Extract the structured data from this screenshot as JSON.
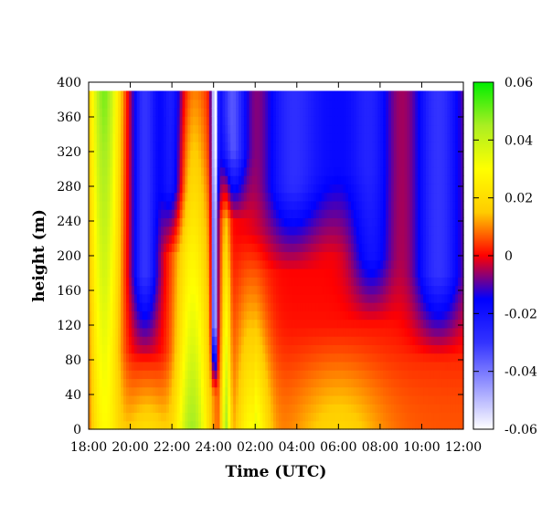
{
  "chart_data": {
    "type": "heatmap",
    "title": "",
    "xlabel": "Time (UTC)",
    "ylabel": "height (m)",
    "x_ticks": [
      "18:00",
      "20:00",
      "22:00",
      "24:00",
      "02:00",
      "04:00",
      "06:00",
      "08:00",
      "10:00",
      "12:00"
    ],
    "x_range_hours": [
      18,
      36
    ],
    "y_ticks": [
      0,
      40,
      80,
      120,
      160,
      200,
      240,
      280,
      320,
      360,
      400
    ],
    "ylim": [
      0,
      400
    ],
    "data_top_height": 390,
    "colorbar": {
      "ticks": [
        0.06,
        0.04,
        0.02,
        0,
        -0.02,
        -0.04,
        -0.06
      ],
      "range": [
        -0.06,
        0.06
      ],
      "colors": [
        {
          "value": -0.06,
          "color": "#ffffff"
        },
        {
          "value": -0.045,
          "color": "#9999ff"
        },
        {
          "value": -0.03,
          "color": "#3333ff"
        },
        {
          "value": -0.015,
          "color": "#0000ff"
        },
        {
          "value": 0.0,
          "color": "#ff0000"
        },
        {
          "value": 0.015,
          "color": "#ffcc00"
        },
        {
          "value": 0.03,
          "color": "#ffff00"
        },
        {
          "value": 0.045,
          "color": "#aaee22"
        },
        {
          "value": 0.06,
          "color": "#00ee00"
        }
      ]
    },
    "time_hours": [
      18.0,
      18.2,
      18.5,
      19.0,
      19.5,
      19.9,
      20.1,
      20.5,
      20.9,
      21.3,
      21.6,
      21.9,
      22.3,
      22.7,
      23.0,
      23.4,
      23.7,
      23.9,
      24.0,
      24.2,
      24.5,
      24.8,
      25.1,
      25.5,
      25.9,
      26.3,
      26.7,
      27.0,
      27.5,
      28.0,
      28.5,
      29.0,
      29.5,
      30.0,
      30.5,
      31.0,
      31.5,
      32.0,
      32.5,
      33.0,
      33.5,
      34.0,
      34.5,
      35.0,
      35.5,
      36.0
    ],
    "heights": [
      0,
      20,
      40,
      60,
      80,
      100,
      120,
      140,
      160,
      180,
      200,
      220,
      240,
      260,
      280,
      300,
      320,
      340,
      360,
      380
    ],
    "low_level_series": [
      {
        "name": "0 m",
        "values": [
          -0.002,
          0.02,
          0.03,
          0.03,
          0.025,
          0.02,
          0.012,
          0.008,
          0.005,
          0.007,
          0.018,
          0.022,
          0.025,
          0.03,
          0.03,
          0.022,
          0.018,
          0.015,
          0.004,
          0.012,
          0.018,
          0.022,
          0.024,
          0.024,
          0.018,
          0.012,
          0.008,
          0.004,
          0.005,
          0.008,
          0.004,
          0.004,
          0.006,
          0.006,
          0.004,
          0.004,
          0.003,
          0.002,
          0.004,
          0.004,
          0.004,
          0.004,
          0.004,
          0.004,
          0.004,
          0.004
        ]
      }
    ],
    "grid": false,
    "legend": "colorbar-right"
  }
}
